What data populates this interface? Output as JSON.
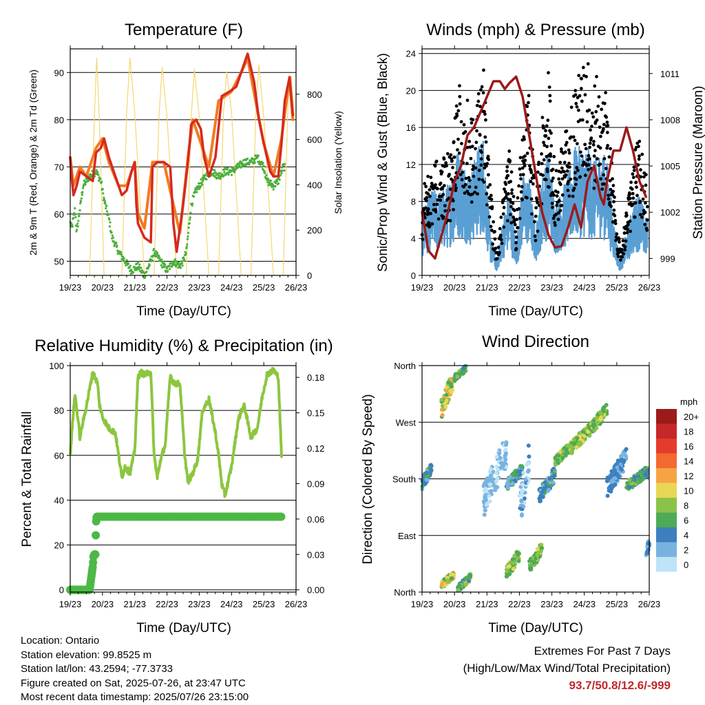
{
  "time_ticks": [
    "19/23",
    "20/23",
    "21/23",
    "22/23",
    "23/23",
    "24/23",
    "25/23",
    "26/23"
  ],
  "chart_data": [
    {
      "id": "temperature",
      "type": "line",
      "title": "Temperature (F)",
      "xlabel": "Time (Day/UTC)",
      "ylabel": "2m & 9m T (Red, Orange) & 2m Td (Green)",
      "ylabel_right": "Solar Insolation (Yellow)",
      "ylim": [
        47,
        95
      ],
      "yticks": [
        50,
        60,
        70,
        80,
        90
      ],
      "ylim_right": [
        0,
        1000
      ],
      "yticks_right": [
        0,
        200,
        400,
        600,
        800
      ],
      "colors": {
        "temp_2m": "#d42a20",
        "temp_9m": "#f47a20",
        "dewpoint": "#4caf3c",
        "solar": "#f5d76e"
      },
      "series": [
        {
          "key": "temp_2m",
          "x": [
            0,
            0.04,
            0.1,
            0.2,
            0.3,
            0.5,
            0.7,
            0.8,
            0.95,
            1.05,
            1.2,
            1.4,
            1.6,
            1.75,
            1.9,
            2.0,
            2.05,
            2.1,
            2.3,
            2.5,
            2.55,
            2.7,
            2.9,
            3.1,
            3.2,
            3.3,
            3.5,
            3.65,
            3.75,
            3.9,
            4.05,
            4.15,
            4.3,
            4.5,
            4.7,
            4.95,
            5.15,
            5.3,
            5.5,
            5.7,
            5.85,
            6.0,
            6.1,
            6.2,
            6.3,
            6.45,
            6.55,
            6.65,
            6.8,
            6.9
          ],
          "values": [
            72,
            68,
            64,
            66,
            69,
            68,
            67,
            73,
            74,
            76,
            72,
            68,
            64,
            65,
            69,
            71,
            62,
            58,
            55,
            54,
            70,
            71,
            71,
            70,
            58,
            52,
            62,
            71,
            79,
            80,
            78,
            72,
            68,
            72,
            85,
            86,
            87,
            90,
            94,
            88,
            80,
            75,
            72,
            69,
            68,
            68,
            75,
            84,
            89,
            81
          ]
        },
        {
          "key": "temp_9m",
          "x": [
            0,
            0.1,
            0.3,
            0.5,
            0.8,
            1.0,
            1.2,
            1.5,
            1.75,
            2.0,
            2.1,
            2.3,
            2.55,
            2.9,
            3.2,
            3.4,
            3.65,
            3.8,
            4.1,
            4.3,
            4.6,
            5.0,
            5.3,
            5.5,
            5.8,
            6.0,
            6.3,
            6.55,
            6.8,
            6.9
          ],
          "values": [
            72,
            66,
            70,
            68,
            74,
            76,
            71,
            66,
            66,
            71,
            60,
            57,
            71,
            71,
            62,
            56,
            72,
            80,
            74,
            70,
            84,
            86,
            90,
            93,
            82,
            75,
            68,
            76,
            89,
            80
          ]
        },
        {
          "key": "dewpoint",
          "x": [
            0,
            0.05,
            0.15,
            0.2,
            0.4,
            0.6,
            0.8,
            0.95,
            1.05,
            1.2,
            1.3,
            1.5,
            1.7,
            1.9,
            2.1,
            2.3,
            2.5,
            2.6,
            2.7,
            3.0,
            3.2,
            3.4,
            3.5,
            3.6,
            3.75,
            3.9,
            4.2,
            4.4,
            4.6,
            4.8,
            5.0,
            5.2,
            5.4,
            5.6,
            5.8,
            6.0,
            6.1,
            6.3,
            6.45,
            6.6
          ],
          "values": [
            58,
            57,
            61,
            56,
            66,
            68,
            69,
            67,
            63,
            59,
            55,
            52,
            50,
            48,
            49,
            47,
            50,
            52,
            51,
            48,
            50,
            49,
            50,
            52,
            62,
            65,
            68,
            69,
            68,
            69,
            69,
            70,
            71,
            71,
            72,
            70,
            67,
            66,
            67,
            70
          ]
        },
        {
          "key": "solar",
          "x": [
            0,
            0.6,
            0.75,
            0.82,
            0.9,
            1.05,
            1.3,
            1.6,
            1.75,
            1.85,
            2.0,
            2.3,
            2.6,
            2.75,
            2.85,
            3.0,
            3.3,
            3.6,
            3.75,
            3.85,
            4.0,
            4.3,
            4.6,
            4.75,
            4.85,
            5.0,
            5.3,
            5.6,
            5.75,
            5.85,
            6.0,
            6.3,
            6.6,
            6.75,
            6.85,
            6.95
          ],
          "values": [
            0,
            0,
            700,
            960,
            700,
            0,
            0,
            0,
            720,
            960,
            720,
            0,
            0,
            700,
            920,
            700,
            0,
            0,
            700,
            910,
            700,
            0,
            0,
            720,
            900,
            720,
            0,
            0,
            700,
            930,
            700,
            0,
            0,
            760,
            880,
            700
          ]
        }
      ]
    },
    {
      "id": "winds_pressure",
      "type": "scatter",
      "title": "Winds (mph) & Pressure (mb)",
      "xlabel": "Time (Day/UTC)",
      "ylabel": "Sonic/Prop Wind & Gust (Blue, Black)",
      "ylabel_right": "Station Pressure (Maroon)",
      "ylim": [
        0,
        24.5
      ],
      "yticks": [
        0,
        4,
        8,
        12,
        16,
        20,
        24
      ],
      "ylim_right": [
        997.9,
        1012.6
      ],
      "yticks_right": [
        999,
        1002,
        1005,
        1008,
        1011
      ],
      "colors": {
        "wind": "#5a9fd4",
        "gust": "#000000",
        "pressure": "#9b1b1b"
      },
      "series": [
        {
          "key": "wind",
          "x": [
            0,
            0.1,
            0.3,
            0.5,
            0.7,
            0.9,
            1.1,
            1.3,
            1.5,
            1.7,
            1.9,
            2.1,
            2.3,
            2.5,
            2.7,
            2.9,
            3.1,
            3.3,
            3.5,
            3.7,
            3.9,
            4.1,
            4.3,
            4.5,
            4.7,
            4.9,
            5.1,
            5.3,
            5.5,
            5.7,
            5.9,
            6.1,
            6.3,
            6.5,
            6.7,
            6.9
          ],
          "values": [
            3,
            5,
            6,
            6,
            6,
            7,
            9,
            8,
            7,
            9,
            10,
            3,
            1,
            4,
            6,
            2,
            7,
            7,
            3,
            7,
            9,
            5,
            6,
            7,
            9,
            9,
            9,
            8,
            9,
            8,
            4,
            1,
            3,
            5,
            6,
            4
          ]
        },
        {
          "key": "gust",
          "x": [
            0,
            0.1,
            0.3,
            0.5,
            0.7,
            0.9,
            1.1,
            1.3,
            1.5,
            1.7,
            1.9,
            2.1,
            2.3,
            2.5,
            2.7,
            2.9,
            3.1,
            3.3,
            3.5,
            3.7,
            3.9,
            4.1,
            4.3,
            4.5,
            4.7,
            4.9,
            5.1,
            5.3,
            5.5,
            5.7,
            5.9,
            6.1,
            6.3,
            6.5,
            6.7,
            6.9
          ],
          "values": [
            5,
            8,
            9,
            10,
            9,
            10,
            15,
            15,
            13,
            14,
            16,
            7,
            2,
            6,
            10,
            4,
            13,
            14,
            6,
            12,
            16,
            8,
            10,
            12,
            15,
            16,
            17,
            15,
            16,
            14,
            7,
            2,
            5,
            9,
            11,
            8
          ]
        },
        {
          "key": "pressure",
          "x": [
            0,
            0.2,
            0.4,
            0.6,
            0.8,
            1.0,
            1.2,
            1.4,
            1.6,
            1.8,
            2.0,
            2.2,
            2.4,
            2.55,
            2.7,
            2.9,
            3.1,
            3.3,
            3.5,
            3.7,
            3.9,
            4.1,
            4.3,
            4.5,
            4.7,
            4.9,
            5.1,
            5.3,
            5.5,
            5.6,
            5.7,
            5.9,
            6.1,
            6.3,
            6.5,
            6.7,
            6.9
          ],
          "values": [
            1002,
            999.5,
            999,
            1000.5,
            1002,
            1004,
            1005,
            1007,
            1007.5,
            1008.5,
            1009.5,
            1010.5,
            1010.5,
            1010,
            1010.4,
            1010.8,
            1009.5,
            1007,
            1004.5,
            1002,
            1000.5,
            999.7,
            999.8,
            1001,
            1002.5,
            1001,
            1004,
            1005,
            1003,
            1002.5,
            1004,
            1006,
            1006,
            1007.5,
            1006,
            1004,
            1003
          ]
        }
      ]
    },
    {
      "id": "humidity_precip",
      "type": "line",
      "title": "Relative Humidity (%) & Precipitation (in)",
      "xlabel": "Time (Day/UTC)",
      "ylabel": "Percent & Total Rainfall",
      "ylim": [
        -1,
        100
      ],
      "yticks": [
        0,
        20,
        40,
        60,
        80,
        100
      ],
      "ylim_right": [
        -0.0019,
        0.19
      ],
      "yticks_right": [
        "0.00",
        "0.03",
        "0.06",
        "0.09",
        "0.12",
        "0.15",
        "0.18"
      ],
      "colors": {
        "rh": "#8cc63f",
        "precip": "#4cb845"
      },
      "series": [
        {
          "key": "rh",
          "x": [
            0,
            0.1,
            0.15,
            0.25,
            0.3,
            0.5,
            0.7,
            0.85,
            0.9,
            1.0,
            1.2,
            1.4,
            1.5,
            1.6,
            1.7,
            1.85,
            2.0,
            2.1,
            2.2,
            2.3,
            2.5,
            2.6,
            2.7,
            2.8,
            2.95,
            3.1,
            3.2,
            3.4,
            3.55,
            3.65,
            3.8,
            3.95,
            4.1,
            4.3,
            4.5,
            4.6,
            4.7,
            4.8,
            5.0,
            5.2,
            5.3,
            5.4,
            5.6,
            5.8,
            5.95,
            6.1,
            6.3,
            6.45,
            6.55
          ],
          "values": [
            60,
            80,
            87,
            75,
            68,
            82,
            97,
            92,
            83,
            77,
            72,
            70,
            60,
            50,
            55,
            52,
            62,
            95,
            97,
            96,
            97,
            60,
            50,
            58,
            65,
            96,
            92,
            92,
            60,
            48,
            52,
            58,
            80,
            85,
            70,
            60,
            47,
            42,
            55,
            75,
            80,
            82,
            68,
            72,
            86,
            96,
            98,
            95,
            60
          ]
        },
        {
          "key": "precip",
          "x": [
            0,
            0.5,
            0.6,
            0.65,
            0.7,
            0.72,
            0.75,
            0.78,
            0.8,
            0.82,
            0.86,
            1.0,
            6.55
          ],
          "values": [
            0,
            0,
            0,
            0.01,
            0.02,
            0.028,
            0.03,
            0.03,
            0.057,
            0.062,
            0.062,
            0.062,
            0.062
          ]
        }
      ]
    },
    {
      "id": "wind_direction",
      "type": "scatter",
      "title": "Wind Direction",
      "xlabel": "Time (Day/UTC)",
      "ylabel": "Direction (Colored By Speed)",
      "yticks": [
        "North",
        "East",
        "South",
        "West",
        "North"
      ],
      "legend_title": "mph",
      "legend_labels": [
        "20+",
        "18",
        "16",
        "14",
        "12",
        "10",
        "8",
        "6",
        "4",
        "2",
        "0"
      ],
      "legend_colors": [
        "#9b1b1b",
        "#c62828",
        "#e53b2c",
        "#f26a2f",
        "#f7a343",
        "#e8d754",
        "#8bc34a",
        "#4daa57",
        "#3d7fbf",
        "#78b3e0",
        "#bfe3f7"
      ],
      "clusters": [
        {
          "x0": 0.0,
          "x1": 0.3,
          "dir": [
            160,
            210
          ],
          "spd": [
            2,
            6
          ]
        },
        {
          "x0": 0.6,
          "x1": 0.95,
          "dir": [
            275,
            355
          ],
          "spd": [
            5,
            12
          ]
        },
        {
          "x0": 1.0,
          "x1": 1.35,
          "dir": [
            335,
            360
          ],
          "spd": [
            3,
            8
          ]
        },
        {
          "x0": 0.6,
          "x1": 1.0,
          "dir": [
            5,
            35
          ],
          "spd": [
            5,
            12
          ]
        },
        {
          "x0": 1.1,
          "x1": 1.5,
          "dir": [
            0,
            30
          ],
          "spd": [
            4,
            10
          ]
        },
        {
          "x0": 1.9,
          "x1": 2.6,
          "dir": [
            120,
            250
          ],
          "spd": [
            0,
            3
          ]
        },
        {
          "x0": 2.6,
          "x1": 3.1,
          "dir": [
            160,
            205
          ],
          "spd": [
            2,
            6
          ]
        },
        {
          "x0": 2.6,
          "x1": 3.0,
          "dir": [
            20,
            70
          ],
          "spd": [
            5,
            10
          ]
        },
        {
          "x0": 3.0,
          "x1": 3.3,
          "dir": [
            100,
            240
          ],
          "spd": [
            0,
            4
          ]
        },
        {
          "x0": 3.3,
          "x1": 3.7,
          "dir": [
            30,
            80
          ],
          "spd": [
            5,
            10
          ]
        },
        {
          "x0": 3.6,
          "x1": 4.1,
          "dir": [
            140,
            200
          ],
          "spd": [
            2,
            6
          ]
        },
        {
          "x0": 4.1,
          "x1": 4.6,
          "dir": [
            200,
            240
          ],
          "spd": [
            5,
            10
          ]
        },
        {
          "x0": 4.6,
          "x1": 5.2,
          "dir": [
            220,
            270
          ],
          "spd": [
            5,
            10
          ]
        },
        {
          "x0": 5.2,
          "x1": 5.7,
          "dir": [
            250,
            300
          ],
          "spd": [
            5,
            10
          ]
        },
        {
          "x0": 5.7,
          "x1": 6.3,
          "dir": [
            150,
            230
          ],
          "spd": [
            1,
            5
          ]
        },
        {
          "x0": 6.3,
          "x1": 6.95,
          "dir": [
            160,
            200
          ],
          "spd": [
            3,
            8
          ]
        },
        {
          "x0": 6.9,
          "x1": 7.0,
          "dir": [
            50,
            90
          ],
          "spd": [
            2,
            4
          ]
        }
      ]
    }
  ],
  "info": {
    "location": "Location: Ontario",
    "elevation": "Station elevation: 99.8525 m",
    "latlon": "Station lat/lon: 43.2594; -77.3733",
    "created": "Figure created on Sat, 2025-07-26, at 23:47 UTC",
    "recent": "Most recent data timestamp: 2025/07/26 23:15:00"
  },
  "extremes": {
    "heading": "Extremes For Past 7 Days",
    "subheading": "(High/Low/Max Wind/Total Precipitation)",
    "values": "93.7/50.8/12.6/-999"
  }
}
